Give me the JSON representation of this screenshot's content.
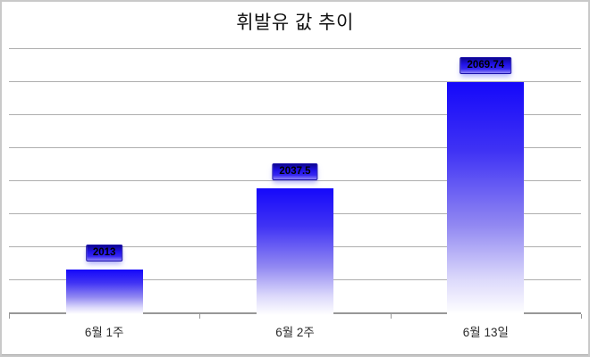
{
  "window": {
    "background": "#ffffff",
    "border_color": "#c9c9c9"
  },
  "chart_data": {
    "type": "bar",
    "title": "휘발유 값 추이",
    "categories": [
      "6월 1주",
      "6월 2주",
      "6월 13일"
    ],
    "values": [
      2013,
      2037.5,
      2069.74
    ],
    "value_labels": [
      "2013",
      "2037.5",
      "2069.74"
    ],
    "xlabel": "",
    "ylabel": "",
    "ylim": [
      2000,
      2080
    ],
    "grid_step": 10,
    "gridlines": "horizontal",
    "y_tick_labels_visible": false,
    "legend": "none",
    "bar_gradient_top": "#1508fa",
    "bar_gradient_bottom": "#ffffff",
    "value_label_text_color": "#000000",
    "value_label_box_colors": [
      "#0d0591",
      "#2112e8",
      "#8f85f7"
    ],
    "gridline_color": "#aeaeae",
    "axis_color": "#979797",
    "title_color": "#111111",
    "category_label_color": "#2b2b2b"
  }
}
